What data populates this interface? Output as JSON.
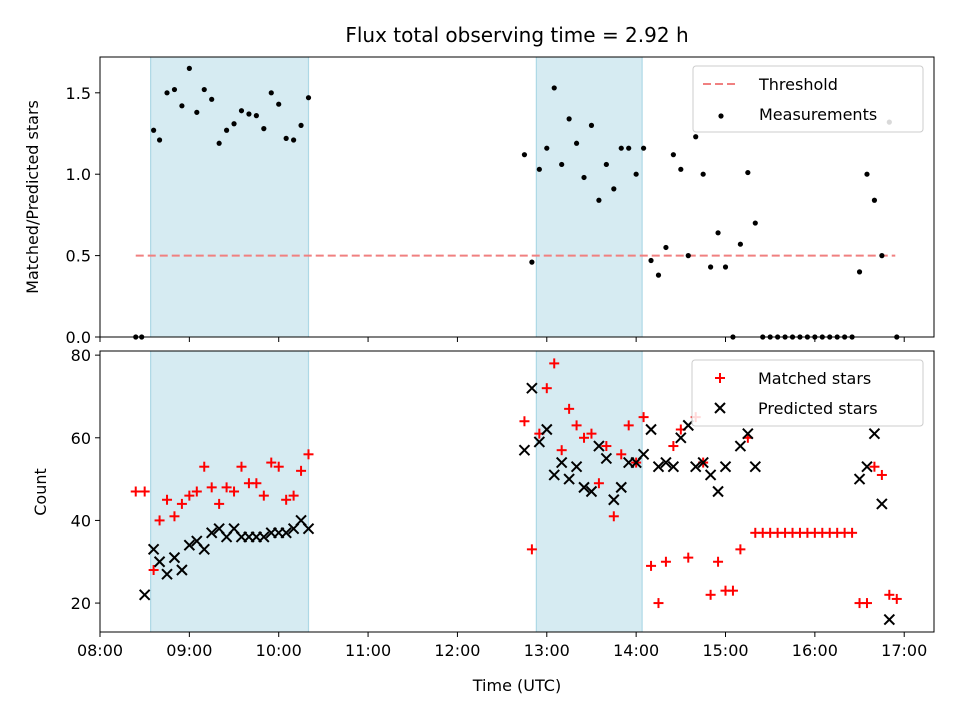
{
  "chart_data": [
    {
      "type": "scatter",
      "title": "Flux total observing time = 2.92 h",
      "xlabel": "",
      "ylabel": "Matched/Predicted stars",
      "ylim": [
        0,
        1.72
      ],
      "yticks": [
        "0.0",
        "0.5",
        "1.0",
        "1.5"
      ],
      "xlim": [
        "08:00",
        "17:20"
      ],
      "shaded_spans": [
        [
          "08:34",
          "10:20"
        ],
        [
          "12:53",
          "14:04"
        ]
      ],
      "legend": {
        "position": "top-right",
        "entries": [
          "Threshold",
          "Measurements"
        ]
      },
      "threshold": {
        "name": "Threshold",
        "y": 0.5,
        "x_range": [
          "08:24",
          "16:54"
        ],
        "color": "#f08080"
      },
      "series": [
        {
          "name": "Measurements",
          "color": "#000000",
          "x": [
            "08:24",
            "08:28",
            "08:36",
            "08:40",
            "08:45",
            "08:50",
            "08:55",
            "09:00",
            "09:05",
            "09:10",
            "09:15",
            "09:20",
            "09:25",
            "09:30",
            "09:35",
            "09:40",
            "09:45",
            "09:50",
            "09:55",
            "10:00",
            "10:05",
            "10:10",
            "10:15",
            "10:20",
            "12:45",
            "12:50",
            "12:55",
            "13:00",
            "13:05",
            "13:10",
            "13:15",
            "13:20",
            "13:25",
            "13:30",
            "13:35",
            "13:40",
            "13:45",
            "13:50",
            "13:55",
            "14:00",
            "14:05",
            "14:10",
            "14:15",
            "14:20",
            "14:25",
            "14:30",
            "14:35",
            "14:40",
            "14:45",
            "14:50",
            "14:55",
            "15:00",
            "15:05",
            "15:10",
            "15:15",
            "15:20",
            "15:25",
            "15:30",
            "15:35",
            "15:40",
            "15:45",
            "15:50",
            "15:55",
            "16:00",
            "16:05",
            "16:10",
            "16:15",
            "16:20",
            "16:25",
            "16:30",
            "16:35",
            "16:40",
            "16:45",
            "16:50",
            "16:55"
          ],
          "y": [
            0.0,
            0.0,
            1.27,
            1.21,
            1.5,
            1.52,
            1.42,
            1.65,
            1.38,
            1.52,
            1.46,
            1.19,
            1.27,
            1.31,
            1.39,
            1.37,
            1.36,
            1.28,
            1.5,
            1.43,
            1.22,
            1.21,
            1.3,
            1.47,
            1.12,
            0.46,
            1.03,
            1.16,
            1.53,
            1.06,
            1.34,
            1.19,
            0.98,
            1.3,
            0.84,
            1.06,
            0.91,
            1.16,
            1.16,
            1.0,
            1.16,
            0.47,
            0.38,
            0.55,
            1.12,
            1.03,
            0.5,
            1.23,
            1.0,
            0.43,
            0.64,
            0.43,
            0.0,
            0.57,
            1.01,
            0.7,
            0.0,
            0.0,
            0.0,
            0.0,
            0.0,
            0.0,
            0.0,
            0.0,
            0.0,
            0.0,
            0.0,
            0.0,
            0.0,
            0.4,
            1.0,
            0.84,
            0.5,
            1.32,
            0.0
          ]
        }
      ]
    },
    {
      "type": "scatter",
      "title": "",
      "xlabel": "Time (UTC)",
      "ylabel": "Count",
      "ylim": [
        13,
        81
      ],
      "yticks": [
        "20",
        "40",
        "60",
        "80"
      ],
      "xlim": [
        "08:00",
        "17:20"
      ],
      "xticks": [
        "08:00",
        "09:00",
        "10:00",
        "11:00",
        "12:00",
        "13:00",
        "14:00",
        "15:00",
        "16:00",
        "17:00"
      ],
      "shaded_spans": [
        [
          "08:34",
          "10:20"
        ],
        [
          "12:53",
          "14:04"
        ]
      ],
      "legend": {
        "position": "top-right",
        "entries": [
          "Matched stars",
          "Predicted stars"
        ]
      },
      "series": [
        {
          "name": "Matched stars",
          "color": "#ff0000",
          "marker": "plus",
          "x": [
            "08:24",
            "08:30",
            "08:36",
            "08:40",
            "08:45",
            "08:50",
            "08:55",
            "09:00",
            "09:05",
            "09:10",
            "09:15",
            "09:20",
            "09:25",
            "09:30",
            "09:35",
            "09:40",
            "09:45",
            "09:50",
            "09:55",
            "10:00",
            "10:05",
            "10:10",
            "10:15",
            "10:20",
            "12:45",
            "12:50",
            "12:55",
            "13:00",
            "13:05",
            "13:10",
            "13:15",
            "13:20",
            "13:25",
            "13:30",
            "13:35",
            "13:40",
            "13:45",
            "13:50",
            "13:55",
            "14:00",
            "14:05",
            "14:10",
            "14:15",
            "14:20",
            "14:25",
            "14:30",
            "14:35",
            "14:40",
            "14:45",
            "14:50",
            "14:55",
            "15:00",
            "15:05",
            "15:10",
            "15:15",
            "15:20",
            "15:25",
            "15:30",
            "15:35",
            "15:40",
            "15:45",
            "15:50",
            "15:55",
            "16:00",
            "16:05",
            "16:10",
            "16:15",
            "16:20",
            "16:25",
            "16:30",
            "16:35",
            "16:40",
            "16:45",
            "16:50",
            "16:55"
          ],
          "y": [
            47,
            47,
            28,
            40,
            45,
            41,
            44,
            46,
            47,
            53,
            48,
            44,
            48,
            47,
            53,
            49,
            49,
            46,
            54,
            53,
            45,
            46,
            52,
            56,
            64,
            33,
            61,
            72,
            78,
            57,
            67,
            63,
            60,
            61,
            49,
            58,
            41,
            56,
            63,
            54,
            65,
            29,
            20,
            30,
            58,
            62,
            31,
            65,
            54,
            22,
            30,
            23,
            23,
            33,
            60,
            37,
            37,
            37,
            37,
            37,
            37,
            37,
            37,
            37,
            37,
            37,
            37,
            37,
            37,
            20,
            20,
            53,
            51,
            22,
            21
          ]
        },
        {
          "name": "Predicted stars",
          "color": "#000000",
          "marker": "x",
          "x": [
            "08:24",
            "08:30",
            "08:36",
            "08:40",
            "08:45",
            "08:50",
            "08:55",
            "09:00",
            "09:05",
            "09:10",
            "09:15",
            "09:20",
            "09:25",
            "09:30",
            "09:35",
            "09:40",
            "09:45",
            "09:50",
            "09:55",
            "10:00",
            "10:05",
            "10:10",
            "10:15",
            "10:20",
            "12:45",
            "12:50",
            "12:55",
            "13:00",
            "13:05",
            "13:10",
            "13:15",
            "13:20",
            "13:25",
            "13:30",
            "13:35",
            "13:40",
            "13:45",
            "13:50",
            "13:55",
            "14:00",
            "14:05",
            "14:10",
            "14:15",
            "14:20",
            "14:25",
            "14:30",
            "14:35",
            "14:40",
            "14:45",
            "14:50",
            "14:55",
            "15:00",
            "15:05",
            "15:10",
            "15:15",
            "15:20",
            "15:25",
            "15:30",
            "15:35",
            "15:40",
            "15:45",
            "15:50",
            "15:55",
            "16:00",
            "16:05",
            "16:10",
            "16:15",
            "16:20",
            "16:25",
            "16:30",
            "16:35",
            "16:40",
            "16:45",
            "16:50",
            "16:55"
          ],
          "y": [
            null,
            22,
            33,
            30,
            27,
            31,
            28,
            34,
            35,
            33,
            37,
            38,
            36,
            38,
            36,
            36,
            36,
            36,
            37,
            37,
            37,
            38,
            40,
            38,
            57,
            72,
            59,
            62,
            51,
            54,
            50,
            53,
            48,
            47,
            58,
            55,
            45,
            48,
            54,
            54,
            56,
            62,
            53,
            54,
            53,
            60,
            63,
            53,
            54,
            51,
            47,
            53,
            null,
            58,
            61,
            53,
            null,
            null,
            null,
            null,
            null,
            null,
            null,
            null,
            null,
            null,
            null,
            null,
            null,
            50,
            53,
            61,
            44,
            16,
            null
          ]
        }
      ]
    }
  ]
}
